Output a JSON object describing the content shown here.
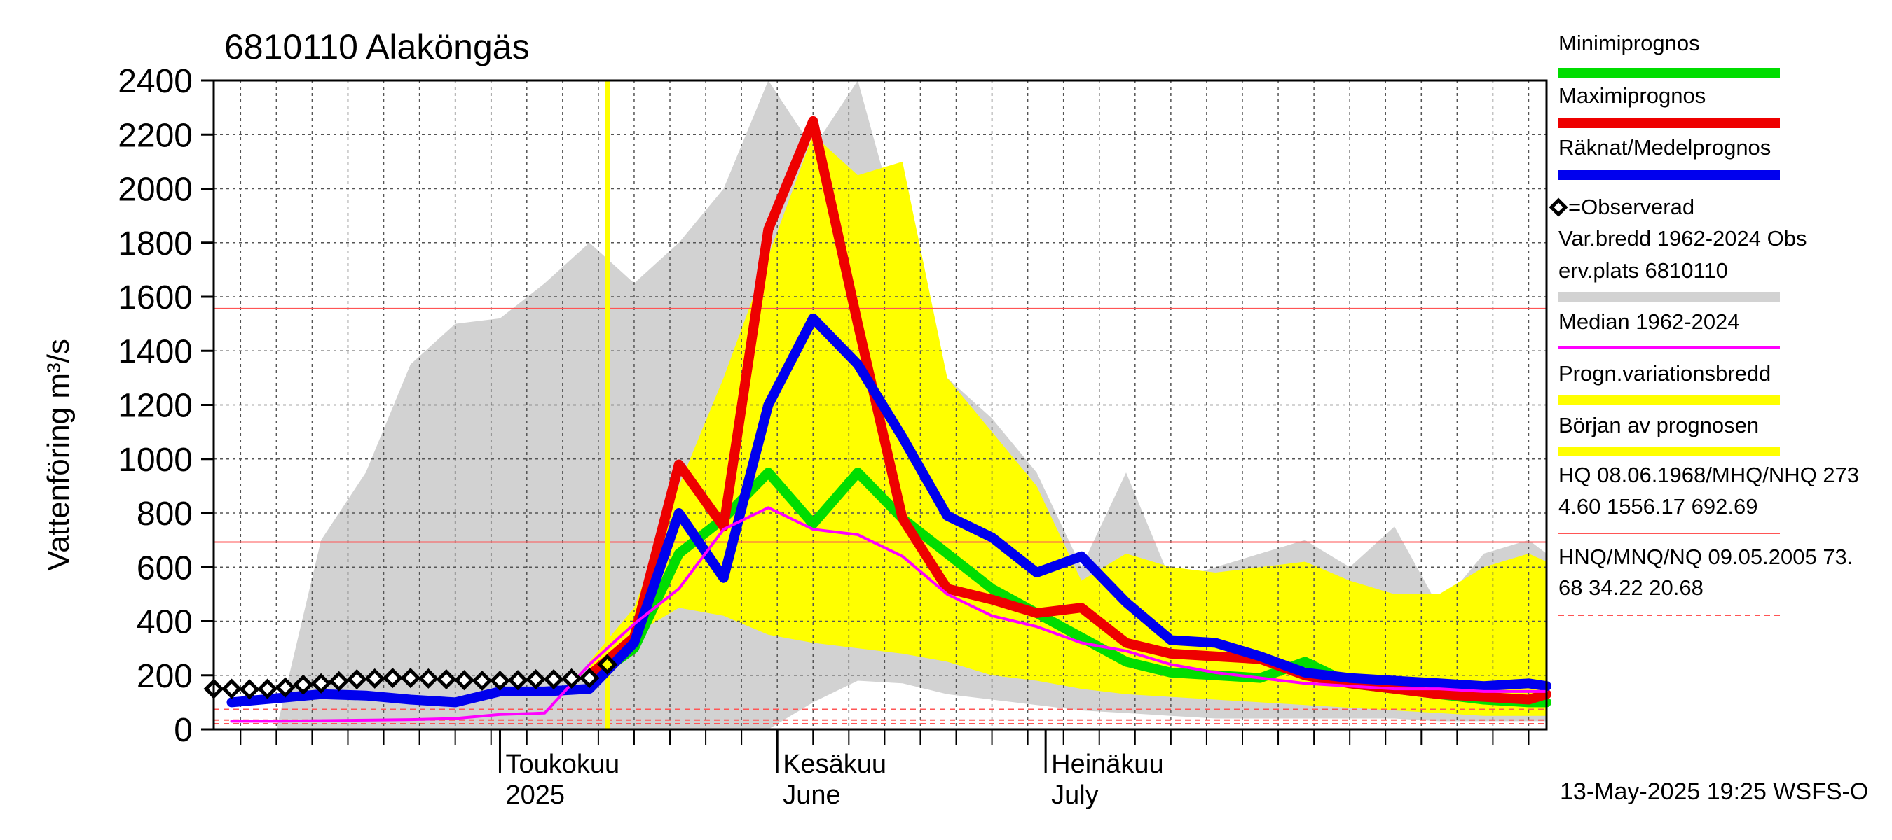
{
  "chart_data": {
    "type": "line",
    "title": "6810110 Alaköngäs",
    "ylabel": "Vattenföring m³/s",
    "ylim": [
      0,
      2400
    ],
    "yticks": [
      0,
      200,
      400,
      600,
      800,
      1000,
      1200,
      1400,
      1600,
      1800,
      2000,
      2200,
      2400
    ],
    "grid": true,
    "legend_position": "right",
    "timestamp": "13-May-2025 19:25 WSFS-O",
    "x_axis": {
      "start": "2025-03-30",
      "end": "2025-08-26",
      "month_labels": [
        {
          "line1": "Toukokuu",
          "line2": "2025",
          "date": "2025-05-01"
        },
        {
          "line1": "Kesäkuu",
          "line2": "June",
          "date": "2025-06-01"
        },
        {
          "line1": "Heinäkuu",
          "line2": "July",
          "date": "2025-07-01"
        }
      ]
    },
    "forecast_start": "2025-05-13",
    "reference_levels": [
      {
        "name": "MHQ",
        "value": 1556.17,
        "color": "#ff5555"
      },
      {
        "name": "NHQ",
        "value": 692.69,
        "color": "#ff5555"
      },
      {
        "name": "HNQ",
        "value": 73.68,
        "color": "#ff5555",
        "dashed": true
      },
      {
        "name": "MNQ",
        "value": 34.22,
        "color": "#ff5555",
        "dashed": true
      },
      {
        "name": "NQ",
        "value": 20.68,
        "color": "#ff5555",
        "dashed": true
      }
    ],
    "x": [
      "2025-04-01",
      "2025-04-06",
      "2025-04-11",
      "2025-04-16",
      "2025-04-21",
      "2025-04-26",
      "2025-05-01",
      "2025-05-06",
      "2025-05-11",
      "2025-05-16",
      "2025-05-21",
      "2025-05-26",
      "2025-05-31",
      "2025-06-05",
      "2025-06-10",
      "2025-06-15",
      "2025-06-20",
      "2025-06-25",
      "2025-06-30",
      "2025-07-05",
      "2025-07-10",
      "2025-07-15",
      "2025-07-20",
      "2025-07-25",
      "2025-07-30",
      "2025-08-04",
      "2025-08-09",
      "2025-08-14",
      "2025-08-19",
      "2025-08-24",
      "2025-08-26"
    ],
    "bands": [
      {
        "name": "Var.bredd 1962-2024 Obs erv.plats 6810110",
        "color": "#d2d2d2",
        "upper": [
          0,
          0,
          700,
          950,
          1350,
          1500,
          1520,
          1650,
          1800,
          1650,
          1800,
          2000,
          2400,
          2150,
          2400,
          1800,
          1300,
          1150,
          950,
          600,
          950,
          550,
          600,
          650,
          700,
          600,
          750,
          450,
          650,
          700,
          650
        ],
        "lower": [
          0,
          0,
          0,
          0,
          0,
          0,
          0,
          0,
          0,
          0,
          0,
          0,
          0,
          100,
          180,
          170,
          130,
          110,
          90,
          70,
          60,
          50,
          40,
          40,
          40,
          40,
          40,
          30,
          30,
          30,
          30
        ]
      },
      {
        "name": "Progn.variationsbredd",
        "color": "#ffff00",
        "upper": [
          null,
          null,
          null,
          null,
          null,
          null,
          null,
          null,
          250,
          450,
          900,
          1300,
          1750,
          2200,
          2050,
          2100,
          1300,
          1100,
          900,
          550,
          650,
          600,
          580,
          600,
          620,
          550,
          500,
          500,
          600,
          650,
          620
        ],
        "lower": [
          null,
          null,
          null,
          null,
          null,
          null,
          null,
          null,
          200,
          350,
          450,
          420,
          350,
          320,
          300,
          280,
          250,
          200,
          180,
          150,
          130,
          120,
          110,
          100,
          90,
          80,
          70,
          60,
          50,
          50,
          50
        ]
      }
    ],
    "series": [
      {
        "name": "Minimiprognos",
        "color": "#00dd00",
        "values": [
          null,
          null,
          null,
          null,
          null,
          null,
          null,
          null,
          180,
          300,
          650,
          780,
          950,
          760,
          950,
          780,
          650,
          520,
          430,
          340,
          250,
          210,
          200,
          190,
          250,
          170,
          150,
          130,
          110,
          100,
          100
        ]
      },
      {
        "name": "Maximiprognos",
        "color": "#ee0000",
        "values": [
          null,
          null,
          null,
          null,
          null,
          null,
          null,
          null,
          200,
          340,
          980,
          750,
          1850,
          2250,
          1500,
          780,
          520,
          480,
          430,
          450,
          320,
          280,
          270,
          260,
          200,
          170,
          150,
          130,
          120,
          110,
          130
        ]
      },
      {
        "name": "Räknat/Medelprognos",
        "color": "#0000ee",
        "values": [
          100,
          115,
          130,
          125,
          110,
          100,
          140,
          140,
          150,
          320,
          800,
          560,
          1200,
          1520,
          1350,
          1080,
          790,
          710,
          580,
          640,
          470,
          330,
          320,
          270,
          210,
          190,
          180,
          170,
          160,
          170,
          160
        ]
      },
      {
        "name": "Median 1962-2024",
        "color": "#ff00ff",
        "values": [
          30,
          30,
          32,
          34,
          36,
          40,
          55,
          60,
          240,
          390,
          520,
          740,
          820,
          740,
          720,
          640,
          500,
          420,
          380,
          320,
          290,
          240,
          210,
          190,
          170,
          160,
          150,
          150,
          140,
          140,
          140
        ]
      },
      {
        "name": "=Observerad",
        "color": "#000000",
        "marker": "diamond",
        "x": [
          "2025-03-30",
          "2025-04-01",
          "2025-04-03",
          "2025-04-05",
          "2025-04-07",
          "2025-04-09",
          "2025-04-11",
          "2025-04-13",
          "2025-04-15",
          "2025-04-17",
          "2025-04-19",
          "2025-04-21",
          "2025-04-23",
          "2025-04-25",
          "2025-04-27",
          "2025-04-29",
          "2025-05-01",
          "2025-05-03",
          "2025-05-05",
          "2025-05-07",
          "2025-05-09",
          "2025-05-11",
          "2025-05-13"
        ],
        "values": [
          150,
          150,
          148,
          150,
          155,
          165,
          170,
          178,
          185,
          188,
          190,
          190,
          188,
          185,
          182,
          180,
          180,
          182,
          185,
          185,
          188,
          190,
          240
        ]
      }
    ]
  },
  "legend": {
    "items": [
      {
        "label": "Minimiprognos",
        "color": "#00dd00"
      },
      {
        "label": "Maximiprognos",
        "color": "#ee0000"
      },
      {
        "label": "Räknat/Medelprognos",
        "color": "#0000ee"
      },
      {
        "label": "=Observerad",
        "color": "#000000"
      },
      {
        "label": "Var.bredd 1962-2024 Obs",
        "label2": "erv.plats 6810110",
        "color": "#d2d2d2"
      },
      {
        "label": "Median 1962-2024",
        "color": "#ff00ff"
      },
      {
        "label": "Progn.variationsbredd",
        "color": "#ffff00"
      },
      {
        "label": "Början av prognosen",
        "color": "#ffff00"
      },
      {
        "label": "HQ 08.06.1968/MHQ/NHQ 273",
        "label2": "4.60 1556.17 692.69",
        "color": "#ff5555"
      },
      {
        "label": "HNQ/MNQ/NQ 09.05.2005 73.",
        "label2": "68 34.22 20.68",
        "color": "#ff5555"
      }
    ]
  }
}
